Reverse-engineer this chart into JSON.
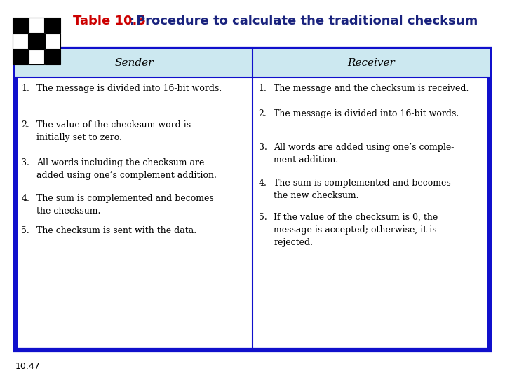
{
  "title_prefix": "Table 10.5",
  "title_colon": ":",
  "title_suffix": "  Procedure to calculate the traditional checksum",
  "header_left": "Sender",
  "header_right": "Receiver",
  "header_bg": "#cce8f0",
  "table_border_color": "#1010cc",
  "table_bg": "#ffffff",
  "page_bg": "#ffffff",
  "sender_items": [
    [
      "1.",
      "The message is divided into 16-bit words."
    ],
    [
      "2.",
      "The value of the checksum word is\ninitially set to zero."
    ],
    [
      "3.",
      "All words including the checksum are\nadded using one’s complement addition."
    ],
    [
      "4.",
      "The sum is complemented and becomes\nthe checksum."
    ],
    [
      "5.",
      "The checksum is sent with the data."
    ]
  ],
  "receiver_items": [
    [
      "1.",
      "The message and the checksum is received."
    ],
    [
      "2.",
      "The message is divided into 16-bit words."
    ],
    [
      "3.",
      "All words are added using one’s comple-\nment addition."
    ],
    [
      "4.",
      "The sum is complemented and becomes\nthe new checksum."
    ],
    [
      "5.",
      "If the value of the checksum is 0, the\nmessage is accepted; otherwise, it is\nrejected."
    ]
  ],
  "footer_text": "10.47",
  "title_color_prefix": "#cc0000",
  "title_color_suffix": "#1a237e",
  "font_size_title": 13,
  "font_size_header": 11,
  "font_size_body": 9,
  "font_size_footer": 9,
  "icon_colors": [
    [
      "#111111",
      "#111111",
      "#111111"
    ],
    [
      "#111111",
      "#111111",
      "#111111"
    ],
    [
      "#111111",
      "#111111",
      "#111111"
    ]
  ]
}
